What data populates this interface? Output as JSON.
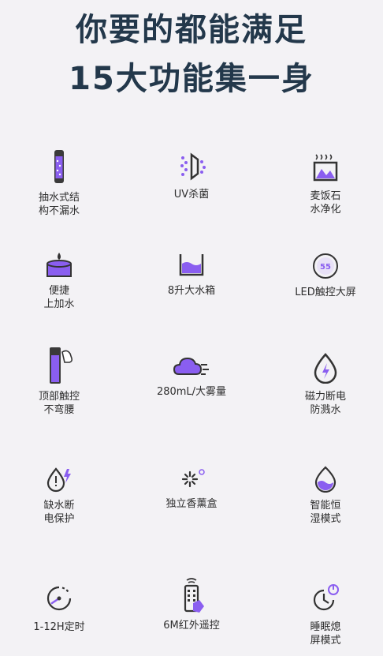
{
  "header": {
    "line1": "你要的都能满足",
    "line2": "15大功能集一身"
  },
  "features": [
    {
      "label": "抽水式结\n构不漏水",
      "icon": "water-tube-icon"
    },
    {
      "label": "UV杀菌",
      "icon": "uv-sterilize-icon"
    },
    {
      "label": "麦饭石\n水净化",
      "icon": "stone-purify-icon"
    },
    {
      "label": "便捷\n上加水",
      "icon": "top-fill-icon"
    },
    {
      "label": "8升大水箱",
      "icon": "water-tank-icon"
    },
    {
      "label": "LED触控大屏",
      "icon": "led-screen-icon"
    },
    {
      "label": "顶部触控\n不弯腰",
      "icon": "top-touch-icon"
    },
    {
      "label": "280mL/大雾量",
      "icon": "mist-cloud-icon"
    },
    {
      "label": "磁力断电\n防溅水",
      "icon": "magnetic-power-icon"
    },
    {
      "label": "缺水断\n电保护",
      "icon": "low-water-protect-icon"
    },
    {
      "label": "独立香薰盒",
      "icon": "aroma-box-icon"
    },
    {
      "label": "智能恒\n湿模式",
      "icon": "smart-humidity-icon"
    },
    {
      "label": "1-12H定时",
      "icon": "timer-icon"
    },
    {
      "label": "6M红外遥控",
      "icon": "remote-control-icon"
    },
    {
      "label": "睡眠熄\n屏模式",
      "icon": "sleep-mode-icon"
    }
  ],
  "colors": {
    "accent": "#7b4ee0",
    "dark": "#23384b",
    "background": "#f3f2f5"
  }
}
